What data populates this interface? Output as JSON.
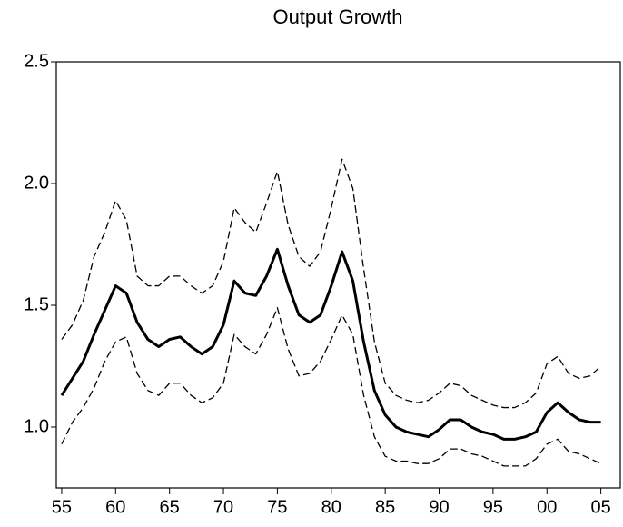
{
  "chart_data": {
    "type": "line",
    "title": "Output Growth",
    "x": [
      1955,
      1956,
      1957,
      1958,
      1959,
      1960,
      1961,
      1962,
      1963,
      1964,
      1965,
      1966,
      1967,
      1968,
      1969,
      1970,
      1971,
      1972,
      1973,
      1974,
      1975,
      1976,
      1977,
      1978,
      1979,
      1980,
      1981,
      1982,
      1983,
      1984,
      1985,
      1986,
      1987,
      1988,
      1989,
      1990,
      1991,
      1992,
      1993,
      1994,
      1995,
      1996,
      1997,
      1998,
      1999,
      2000,
      2001,
      2002,
      2003,
      2004,
      2005
    ],
    "series": [
      {
        "color": "#000000",
        "dashed": true,
        "line_width": 1.3,
        "values": [
          1.36,
          1.42,
          1.52,
          1.7,
          1.8,
          1.93,
          1.85,
          1.62,
          1.58,
          1.58,
          1.62,
          1.62,
          1.58,
          1.55,
          1.58,
          1.68,
          1.9,
          1.84,
          1.8,
          1.92,
          2.05,
          1.83,
          1.7,
          1.66,
          1.72,
          1.9,
          2.1,
          1.98,
          1.65,
          1.35,
          1.18,
          1.13,
          1.11,
          1.1,
          1.11,
          1.14,
          1.18,
          1.17,
          1.13,
          1.11,
          1.09,
          1.08,
          1.08,
          1.1,
          1.14,
          1.26,
          1.29,
          1.22,
          1.2,
          1.21,
          1.25
        ]
      },
      {
        "color": "#000000",
        "dashed": false,
        "line_width": 3,
        "values": [
          1.13,
          1.2,
          1.27,
          1.38,
          1.48,
          1.58,
          1.55,
          1.43,
          1.36,
          1.33,
          1.36,
          1.37,
          1.33,
          1.3,
          1.33,
          1.42,
          1.6,
          1.55,
          1.54,
          1.62,
          1.73,
          1.58,
          1.46,
          1.43,
          1.46,
          1.58,
          1.72,
          1.6,
          1.35,
          1.15,
          1.05,
          1.0,
          0.98,
          0.97,
          0.96,
          0.99,
          1.03,
          1.03,
          1.0,
          0.98,
          0.97,
          0.95,
          0.95,
          0.96,
          0.98,
          1.06,
          1.1,
          1.06,
          1.03,
          1.02,
          1.02
        ]
      },
      {
        "color": "#000000",
        "dashed": true,
        "line_width": 1.3,
        "values": [
          0.93,
          1.02,
          1.08,
          1.16,
          1.27,
          1.35,
          1.37,
          1.22,
          1.15,
          1.13,
          1.18,
          1.18,
          1.13,
          1.1,
          1.12,
          1.18,
          1.38,
          1.33,
          1.3,
          1.38,
          1.49,
          1.32,
          1.21,
          1.22,
          1.27,
          1.36,
          1.46,
          1.38,
          1.13,
          0.96,
          0.88,
          0.86,
          0.86,
          0.85,
          0.85,
          0.87,
          0.91,
          0.91,
          0.89,
          0.88,
          0.86,
          0.84,
          0.84,
          0.84,
          0.87,
          0.93,
          0.95,
          0.9,
          0.89,
          0.87,
          0.85
        ]
      }
    ],
    "xlim": [
      1954.5,
      2006.8
    ],
    "xticks": [
      {
        "value": 1955,
        "label": "55"
      },
      {
        "value": 1960,
        "label": "60"
      },
      {
        "value": 1965,
        "label": "65"
      },
      {
        "value": 1970,
        "label": "70"
      },
      {
        "value": 1975,
        "label": "75"
      },
      {
        "value": 1980,
        "label": "80"
      },
      {
        "value": 1985,
        "label": "85"
      },
      {
        "value": 1990,
        "label": "90"
      },
      {
        "value": 1995,
        "label": "95"
      },
      {
        "value": 2000,
        "label": "00"
      },
      {
        "value": 2005,
        "label": "05"
      }
    ],
    "ylim": [
      0.75,
      2.5
    ],
    "yticks": [
      {
        "value": 1.0,
        "label": "1.0"
      },
      {
        "value": 1.5,
        "label": "1.5"
      },
      {
        "value": 2.0,
        "label": "2.0"
      },
      {
        "value": 2.5,
        "label": "2.5"
      }
    ],
    "grid": false
  }
}
